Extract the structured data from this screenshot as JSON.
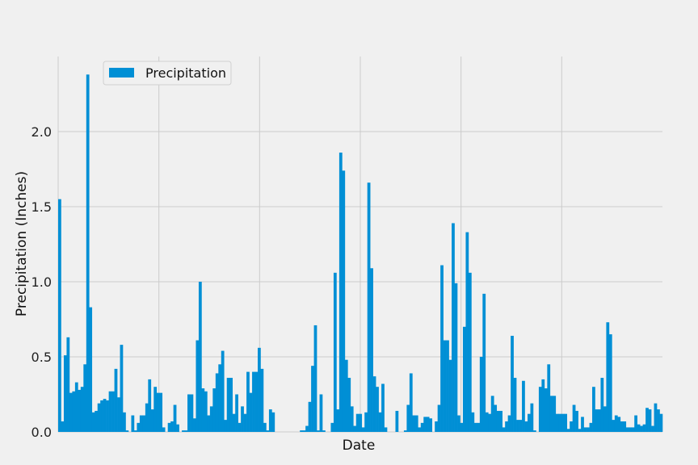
{
  "chart_data": {
    "type": "bar",
    "xlabel": "Date",
    "ylabel": "Precipitation (Inches)",
    "ylim": [
      0,
      2.5
    ],
    "yticks": [
      "0.0",
      "0.5",
      "1.0",
      "1.5",
      "2.0"
    ],
    "grid": true,
    "legend_position": "upper-left",
    "colors": {
      "bar": "#008fd5",
      "background": "#f0f0f0",
      "grid": "#cbcbcb"
    },
    "series": [
      {
        "name": "Precipitation",
        "values": [
          1.55,
          0.07,
          0.51,
          0.63,
          0.26,
          0.27,
          0.33,
          0.28,
          0.3,
          0.45,
          2.38,
          0.83,
          0.13,
          0.14,
          0.19,
          0.21,
          0.22,
          0.21,
          0.27,
          0.27,
          0.42,
          0.23,
          0.58,
          0.13,
          0.01,
          0,
          0.11,
          0.01,
          0.06,
          0.11,
          0.11,
          0.19,
          0.35,
          0.15,
          0.3,
          0.26,
          0.26,
          0.03,
          0,
          0.06,
          0.07,
          0.18,
          0.05,
          0,
          0.01,
          0.01,
          0.25,
          0.25,
          0.09,
          0.61,
          1.0,
          0.29,
          0.27,
          0.11,
          0.17,
          0.29,
          0.39,
          0.45,
          0.54,
          0.08,
          0.36,
          0.36,
          0.12,
          0.25,
          0.06,
          0.17,
          0.12,
          0.4,
          0.26,
          0.4,
          0.4,
          0.56,
          0.42,
          0.06,
          0.01,
          0.15,
          0.13,
          0,
          0,
          0,
          0,
          0,
          0,
          0,
          0,
          0,
          0.01,
          0.01,
          0.04,
          0.2,
          0.44,
          0.71,
          0.01,
          0.25,
          0.01,
          0,
          0,
          0.06,
          1.06,
          0.15,
          1.86,
          1.74,
          0.48,
          0.36,
          0.17,
          0.04,
          0.12,
          0.12,
          0.03,
          0.13,
          1.66,
          1.09,
          0.37,
          0.3,
          0.13,
          0.32,
          0.03,
          0,
          0,
          0,
          0.14,
          0,
          0,
          0.01,
          0.18,
          0.39,
          0.11,
          0.11,
          0.03,
          0.06,
          0.1,
          0.1,
          0.09,
          0,
          0.07,
          0.18,
          1.11,
          0.61,
          0.61,
          0.48,
          1.39,
          0.99,
          0.11,
          0.06,
          0.7,
          1.33,
          1.06,
          0.13,
          0.06,
          0.06,
          0.5,
          0.92,
          0.13,
          0.12,
          0.24,
          0.18,
          0.14,
          0.14,
          0.03,
          0.07,
          0.11,
          0.64,
          0.36,
          0.08,
          0.08,
          0.34,
          0.07,
          0.12,
          0.19,
          0.01,
          0,
          0.3,
          0.35,
          0.29,
          0.45,
          0.24,
          0.24,
          0.12,
          0.12,
          0.12,
          0.12,
          0.02,
          0.07,
          0.18,
          0.14,
          0.02,
          0.1,
          0.03,
          0.03,
          0.06,
          0.3,
          0.15,
          0.15,
          0.36,
          0.17,
          0.73,
          0.65,
          0.08,
          0.11,
          0.1,
          0.07,
          0.07,
          0.03,
          0.03,
          0.03,
          0.11,
          0.05,
          0.04,
          0.05,
          0.16,
          0.15,
          0.04,
          0.19,
          0.15,
          0.12
        ]
      }
    ]
  }
}
